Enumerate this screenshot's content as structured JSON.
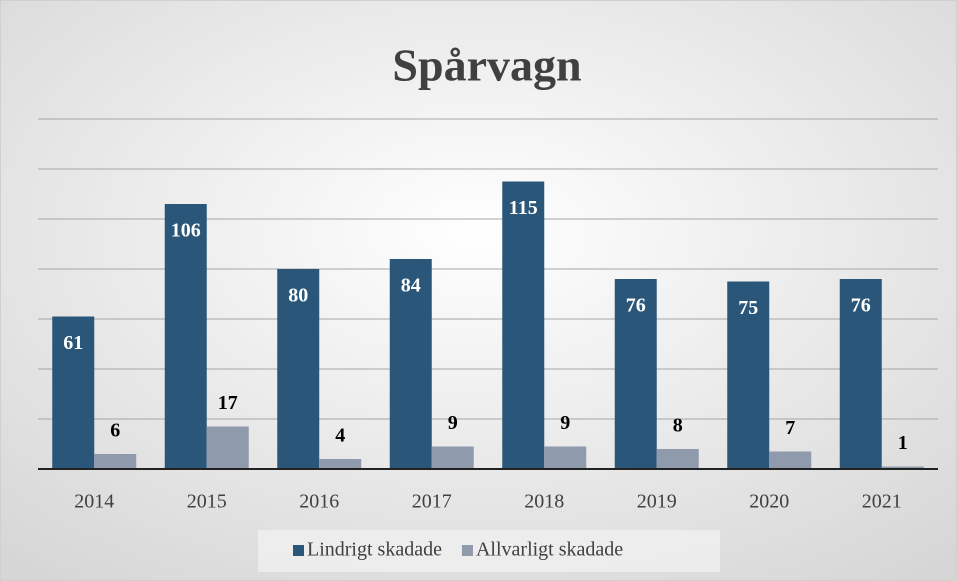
{
  "chart_data": {
    "type": "bar",
    "title": "Spårvagn",
    "categories": [
      "2014",
      "2015",
      "2016",
      "2017",
      "2018",
      "2019",
      "2020",
      "2021"
    ],
    "series": [
      {
        "name": "Lindrigt skadade",
        "color": "#2a5779",
        "values": [
          61,
          106,
          80,
          84,
          115,
          76,
          75,
          76
        ]
      },
      {
        "name": "Allvarligt skadade",
        "color": "#8f9aad",
        "values": [
          6,
          17,
          4,
          9,
          9,
          8,
          7,
          1
        ]
      }
    ],
    "ylim": [
      0,
      140
    ],
    "yticks": [
      20,
      40,
      60,
      80,
      100,
      120,
      140
    ],
    "grid": true,
    "legend": "bottom"
  }
}
